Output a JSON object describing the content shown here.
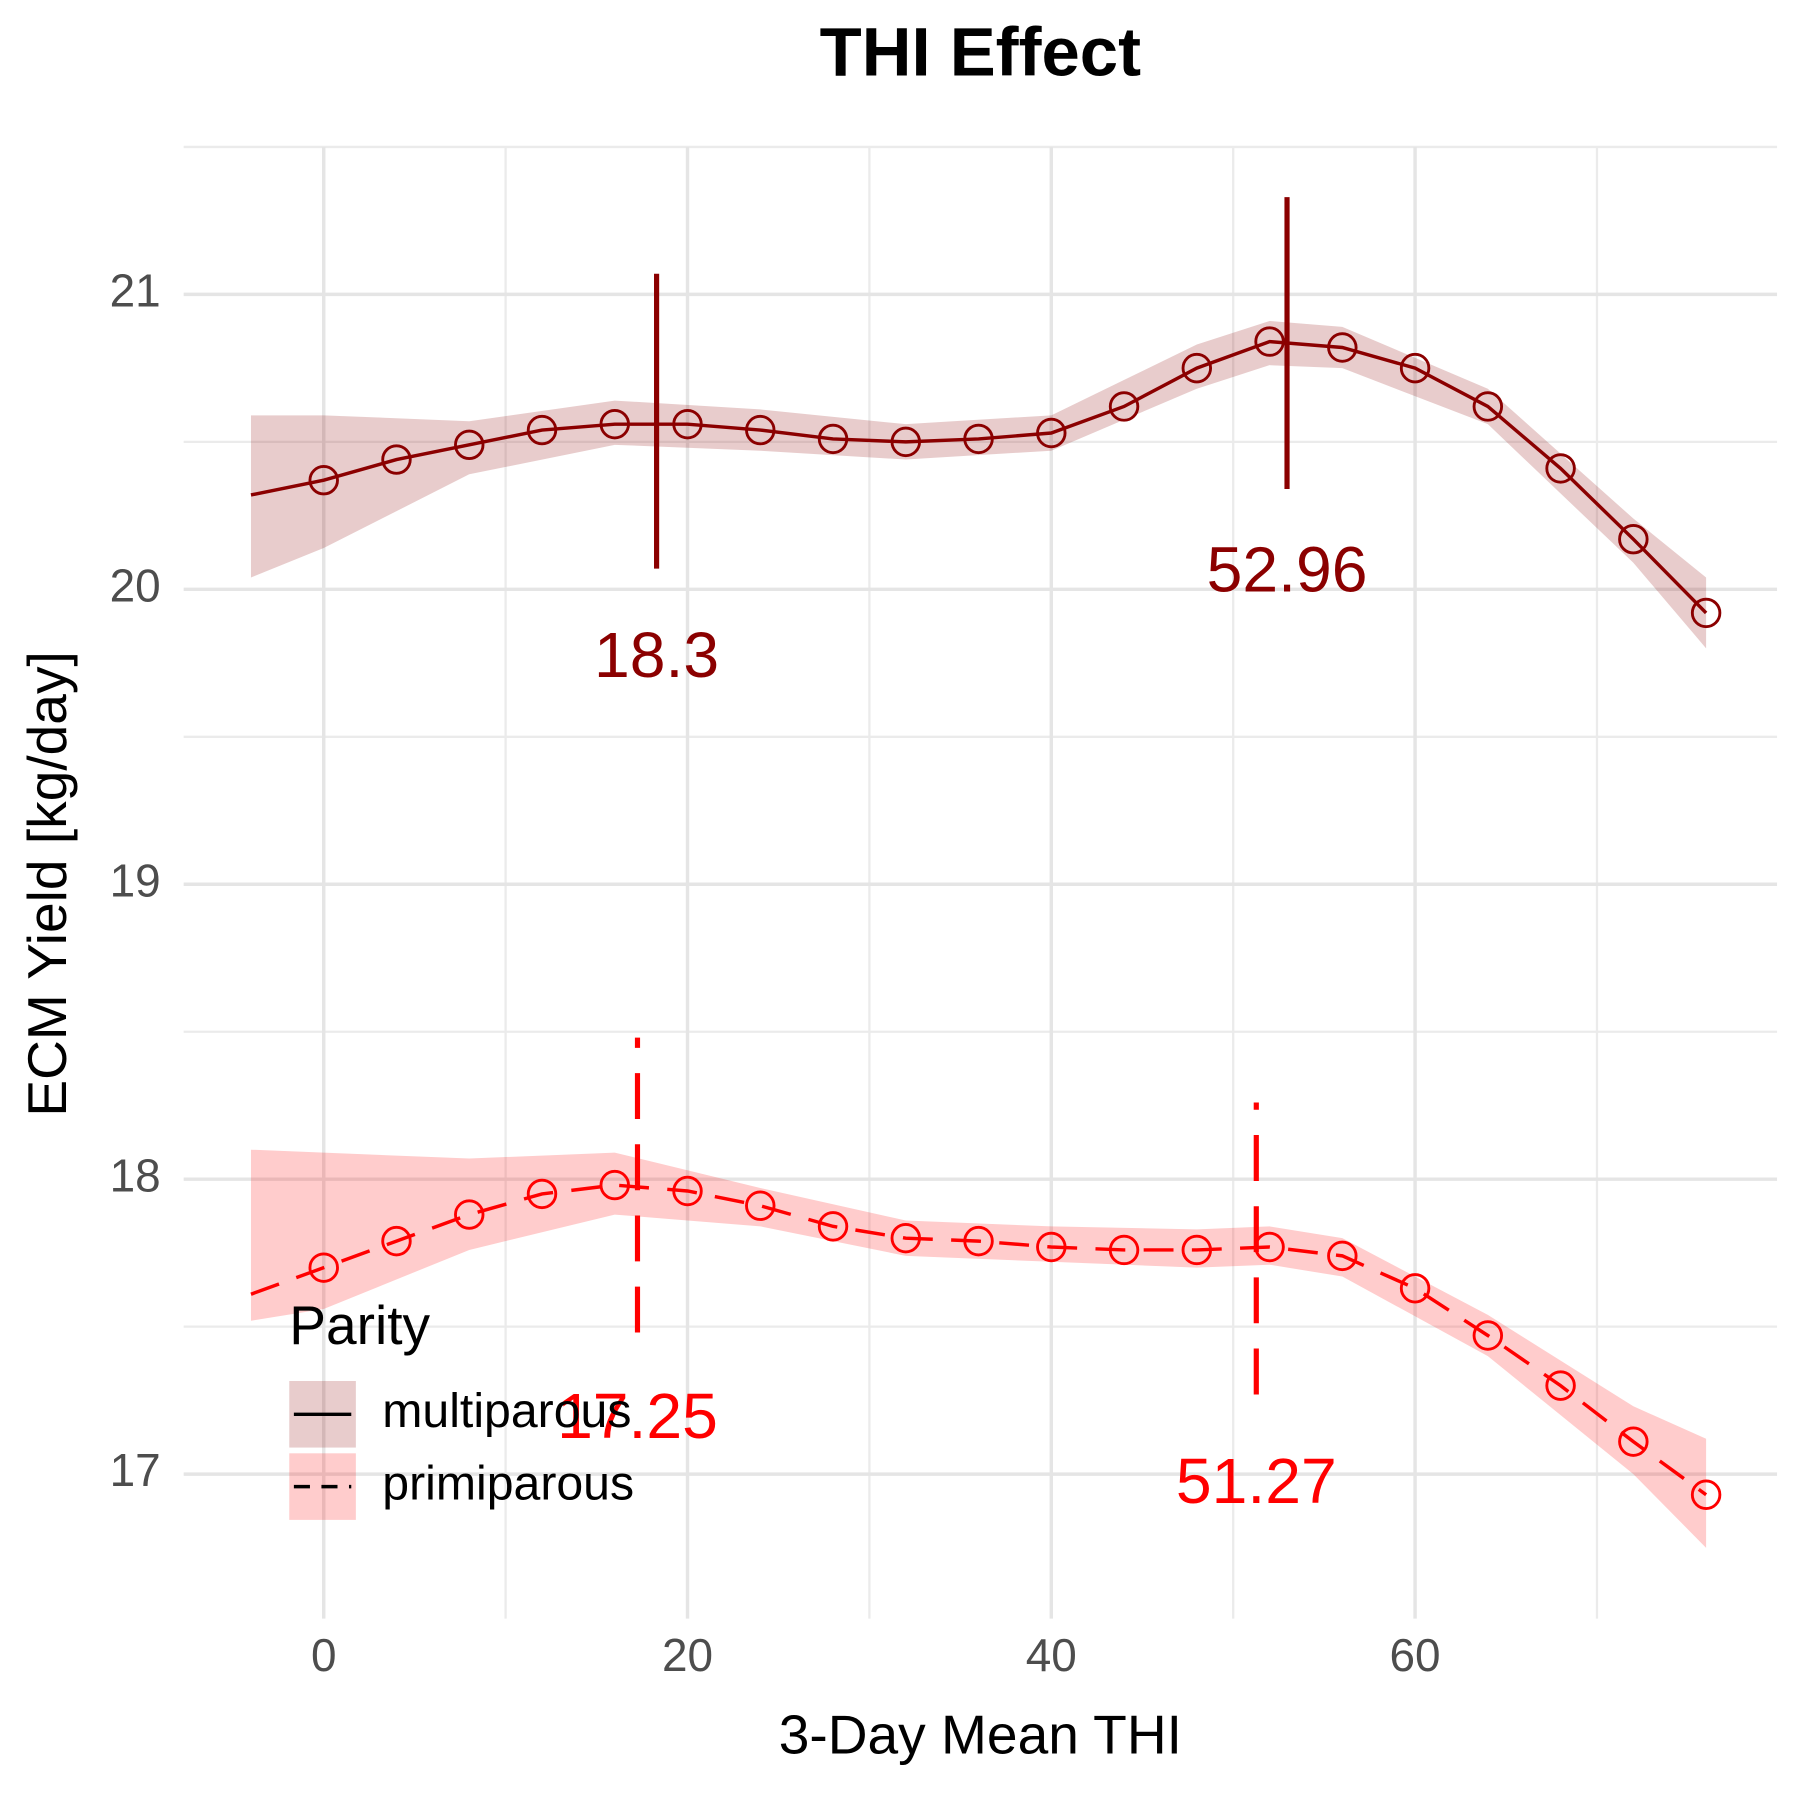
{
  "chart_data": {
    "type": "line",
    "title": "THI Effect",
    "x_label": "3-Day Mean THI",
    "y_label": "ECM Yield [kg/day]",
    "xlim": [
      -7.7,
      79.9
    ],
    "ylim": [
      16.51,
      21.5
    ],
    "xticks": [
      0,
      20,
      40,
      60
    ],
    "yticks": [
      17,
      18,
      19,
      20,
      21
    ],
    "x_minor_grid": [
      10,
      30,
      50,
      70
    ],
    "y_minor_grid": [
      17.5,
      18.5,
      19.5,
      20.5,
      21.5
    ],
    "grid": true,
    "legend": {
      "title": "Parity",
      "position": "bottom-left"
    },
    "x": [
      0,
      4,
      8,
      12,
      16,
      20,
      24,
      28,
      32,
      36,
      40,
      44,
      48,
      52,
      56,
      60,
      64,
      68,
      72,
      76
    ],
    "fit_x": [
      -4,
      0,
      4,
      8,
      12,
      16,
      20,
      24,
      28,
      32,
      36,
      40,
      44,
      48,
      52,
      56,
      60,
      64,
      68,
      72,
      76
    ],
    "ribbon_x": [
      -4,
      0,
      8,
      16,
      24,
      32,
      40,
      48,
      52,
      56,
      64,
      72,
      76
    ],
    "series": [
      {
        "name": "multiparous",
        "color": "#8b0000",
        "ribbon_color": "#8b0000",
        "linetype": "solid",
        "values": [
          20.37,
          20.44,
          20.49,
          20.54,
          20.56,
          20.56,
          20.54,
          20.51,
          20.5,
          20.51,
          20.53,
          20.62,
          20.75,
          20.84,
          20.82,
          20.75,
          20.62,
          20.41,
          20.17,
          19.92
        ],
        "fit": [
          20.32,
          20.37,
          20.44,
          20.49,
          20.54,
          20.56,
          20.56,
          20.54,
          20.51,
          20.5,
          20.51,
          20.53,
          20.62,
          20.75,
          20.84,
          20.82,
          20.75,
          20.62,
          20.41,
          20.17,
          19.92
        ],
        "upper": [
          20.59,
          20.59,
          20.57,
          20.64,
          20.61,
          20.56,
          20.59,
          20.83,
          20.91,
          20.89,
          20.68,
          20.24,
          20.04
        ],
        "lower": [
          20.04,
          20.14,
          20.39,
          20.49,
          20.47,
          20.44,
          20.47,
          20.68,
          20.76,
          20.75,
          20.56,
          20.09,
          19.8
        ],
        "markers": [
          {
            "x": 18.3,
            "ymin": 20.07,
            "ymax": 21.07,
            "label_y": 19.76
          },
          {
            "x": 52.96,
            "ymin": 20.34,
            "ymax": 21.33,
            "label_y": 20.05
          }
        ]
      },
      {
        "name": "primiparous",
        "color": "#ff0000",
        "ribbon_color": "#ff0000",
        "linetype": "dashed",
        "values": [
          17.7,
          17.79,
          17.88,
          17.95,
          17.98,
          17.96,
          17.91,
          17.84,
          17.8,
          17.79,
          17.77,
          17.76,
          17.76,
          17.77,
          17.74,
          17.63,
          17.47,
          17.3,
          17.11,
          16.93
        ],
        "fit": [
          17.61,
          17.7,
          17.79,
          17.88,
          17.95,
          17.98,
          17.96,
          17.91,
          17.84,
          17.8,
          17.79,
          17.77,
          17.76,
          17.76,
          17.77,
          17.74,
          17.63,
          17.47,
          17.3,
          17.11,
          16.93
        ],
        "upper": [
          18.1,
          18.09,
          18.07,
          18.09,
          17.97,
          17.86,
          17.84,
          17.83,
          17.84,
          17.8,
          17.54,
          17.23,
          17.12
        ],
        "lower": [
          17.52,
          17.56,
          17.76,
          17.88,
          17.84,
          17.74,
          17.72,
          17.7,
          17.71,
          17.67,
          17.4,
          17.0,
          16.75
        ],
        "markers": [
          {
            "x": 17.25,
            "ymin": 17.48,
            "ymax": 18.48,
            "label_y": 17.18
          },
          {
            "x": 51.27,
            "ymin": 17.27,
            "ymax": 18.26,
            "label_y": 16.96
          }
        ]
      }
    ]
  }
}
